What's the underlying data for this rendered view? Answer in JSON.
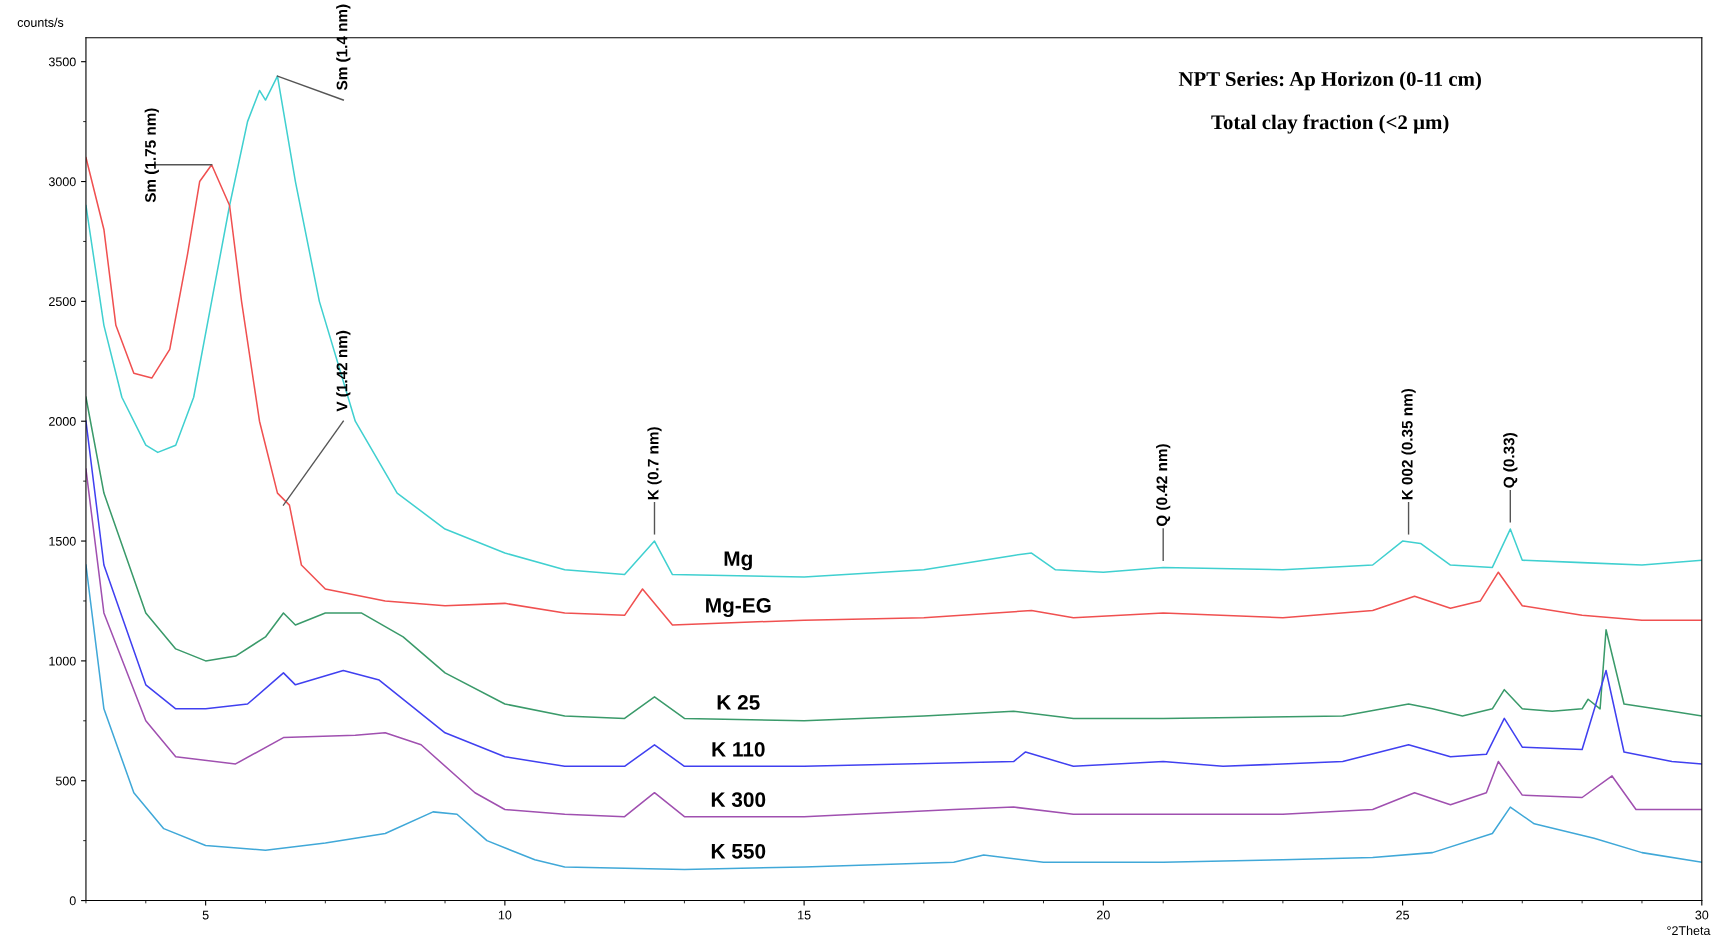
{
  "chart_data": {
    "type": "line",
    "title": "NPT Series: Ap Horizon (0-11 cm)",
    "subtitle": "Total clay fraction (<2 µm)",
    "xlabel": "°2Theta",
    "ylabel": "counts/s",
    "xlim": [
      3,
      30
    ],
    "xticks": [
      5,
      10,
      15,
      20,
      25,
      30
    ],
    "ylim": [
      0,
      3600
    ],
    "yticks": [
      0,
      500,
      1000,
      1500,
      2000,
      2500,
      3000,
      3500
    ],
    "grid": false,
    "legend": false,
    "marker": "none",
    "line_style": "solid",
    "series": [
      {
        "name": "Mg",
        "color": "#40d0d0",
        "x": [
          3,
          3.3,
          3.6,
          4.0,
          4.2,
          4.5,
          4.8,
          5.1,
          5.4,
          5.7,
          5.9,
          6.0,
          6.2,
          6.5,
          6.9,
          7.5,
          8.2,
          9,
          10,
          11,
          12,
          12.5,
          12.8,
          15,
          17,
          18.5,
          18.8,
          19.2,
          20,
          21,
          23,
          24.5,
          25.0,
          25.3,
          25.8,
          26.5,
          26.8,
          27.0,
          28,
          29,
          30
        ],
        "values": [
          2900,
          2400,
          2100,
          1900,
          1870,
          1900,
          2100,
          2500,
          2900,
          3250,
          3380,
          3340,
          3440,
          3000,
          2500,
          2000,
          1700,
          1550,
          1450,
          1380,
          1360,
          1500,
          1360,
          1350,
          1380,
          1440,
          1450,
          1380,
          1370,
          1390,
          1380,
          1400,
          1500,
          1490,
          1400,
          1390,
          1550,
          1420,
          1410,
          1400,
          1420
        ]
      },
      {
        "name": "Mg-EG",
        "color": "#f05050",
        "x": [
          3,
          3.3,
          3.5,
          3.8,
          4.1,
          4.4,
          4.7,
          4.9,
          5.1,
          5.4,
          5.6,
          5.9,
          6.2,
          6.4,
          6.6,
          7,
          8,
          9,
          10,
          11,
          12,
          12.3,
          12.8,
          15,
          17,
          18.8,
          19.5,
          21,
          23,
          24.5,
          25.2,
          25.8,
          26.3,
          26.6,
          27,
          28,
          29,
          30
        ],
        "values": [
          3100,
          2800,
          2400,
          2200,
          2180,
          2300,
          2700,
          3000,
          3070,
          2900,
          2500,
          2000,
          1700,
          1650,
          1400,
          1300,
          1250,
          1230,
          1240,
          1200,
          1190,
          1300,
          1150,
          1170,
          1180,
          1210,
          1180,
          1200,
          1180,
          1210,
          1270,
          1220,
          1250,
          1370,
          1230,
          1190,
          1170,
          1170
        ]
      },
      {
        "name": "K 25",
        "color": "#3a9a6a",
        "x": [
          3,
          3.3,
          4,
          4.5,
          5,
          5.5,
          6,
          6.3,
          6.5,
          7,
          7.6,
          8.3,
          9,
          10,
          11,
          12,
          12.5,
          13,
          15,
          17,
          18.5,
          19.5,
          21,
          24,
          25.1,
          25.5,
          26,
          26.5,
          26.7,
          27,
          27.5,
          28,
          28.1,
          28.3,
          28.4,
          28.7,
          29.5,
          30
        ],
        "values": [
          2100,
          1700,
          1200,
          1050,
          1000,
          1020,
          1100,
          1200,
          1150,
          1200,
          1200,
          1100,
          950,
          820,
          770,
          760,
          850,
          760,
          750,
          770,
          790,
          760,
          760,
          770,
          820,
          800,
          770,
          800,
          880,
          800,
          790,
          800,
          840,
          800,
          1130,
          820,
          790,
          770
        ]
      },
      {
        "name": "K 110",
        "color": "#4040f0",
        "x": [
          3,
          3.3,
          4,
          4.5,
          5,
          5.7,
          6.3,
          6.5,
          7.3,
          7.9,
          8.5,
          9,
          10,
          11,
          12,
          12.5,
          13,
          15,
          18.5,
          18.7,
          19.5,
          21,
          22,
          24,
          25.1,
          25.8,
          26.4,
          26.7,
          27,
          28,
          28.4,
          28.7,
          29.5,
          30
        ],
        "values": [
          2000,
          1400,
          900,
          800,
          800,
          820,
          950,
          900,
          960,
          920,
          800,
          700,
          600,
          560,
          560,
          650,
          560,
          560,
          580,
          620,
          560,
          580,
          560,
          580,
          650,
          600,
          610,
          760,
          640,
          630,
          960,
          620,
          580,
          570
        ]
      },
      {
        "name": "K 300",
        "color": "#a050b0",
        "x": [
          3,
          3.3,
          4,
          4.5,
          5.5,
          6.3,
          7.5,
          8,
          8.6,
          9.5,
          10,
          11,
          12,
          12.5,
          13,
          15,
          17.5,
          18.5,
          19.5,
          21,
          23,
          24.5,
          25.2,
          25.8,
          26.4,
          26.6,
          27,
          28,
          28.5,
          28.9,
          30
        ],
        "values": [
          1800,
          1200,
          750,
          600,
          570,
          680,
          690,
          700,
          650,
          450,
          380,
          360,
          350,
          450,
          350,
          350,
          380,
          390,
          360,
          360,
          360,
          380,
          450,
          400,
          450,
          580,
          440,
          430,
          520,
          380,
          380
        ]
      },
      {
        "name": "K 550",
        "color": "#40a8d8",
        "x": [
          3,
          3.3,
          3.8,
          4.3,
          5,
          6,
          7,
          8,
          8.8,
          9.2,
          9.7,
          10.5,
          11,
          13,
          15,
          17.5,
          18,
          19,
          21,
          23,
          24.5,
          25.5,
          26.5,
          26.8,
          27.2,
          28.2,
          29,
          30
        ],
        "values": [
          1400,
          800,
          450,
          300,
          230,
          210,
          240,
          280,
          370,
          360,
          250,
          170,
          140,
          130,
          140,
          160,
          190,
          160,
          160,
          170,
          180,
          200,
          280,
          390,
          320,
          260,
          200,
          160
        ]
      }
    ],
    "annotations": [
      {
        "text": "Sm (1.75 nm)",
        "x": 5.1,
        "y": 3070
      },
      {
        "text": "Sm (1.4 nm)",
        "x": 6.2,
        "y": 3440
      },
      {
        "text": "V (1.42 nm)",
        "x": 6.3,
        "y": 1650
      },
      {
        "text": "K (0.7 nm)",
        "x": 12.5,
        "y": 1500
      },
      {
        "text": "Q (0.42 nm)",
        "x": 21,
        "y": 1390
      },
      {
        "text": "K 002 (0.35 nm)",
        "x": 25.1,
        "y": 1500
      },
      {
        "text": "Q (0.33)",
        "x": 26.8,
        "y": 1550
      }
    ]
  }
}
